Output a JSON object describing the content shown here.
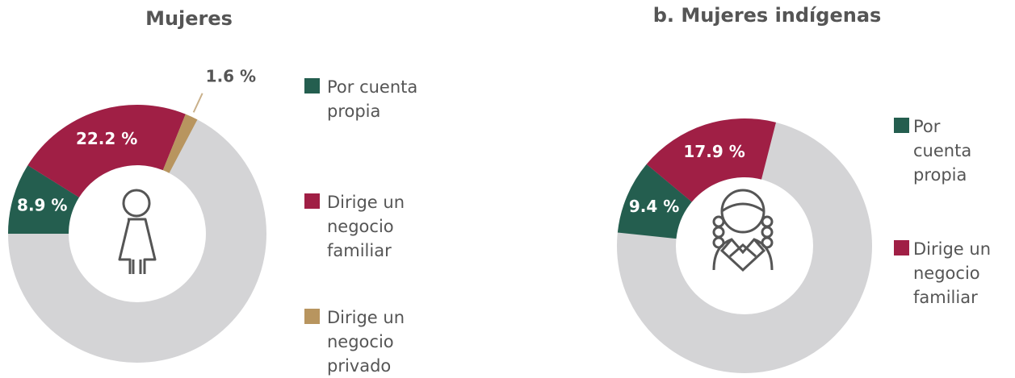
{
  "chart_data": [
    {
      "type": "donut",
      "title": "Mujeres",
      "categories": [
        "Por cuenta propia",
        "Dirige un negocio familiar",
        "Dirige un negocio privado"
      ],
      "values": [
        8.9,
        22.2,
        1.6
      ],
      "value_labels": [
        "8.9 %",
        "22.2 %",
        "1.6 %"
      ],
      "colors": [
        "#245e4f",
        "#a01f45",
        "#b8955f"
      ]
    },
    {
      "type": "donut",
      "title": "b.   Mujeres indígenas",
      "categories": [
        "Por cuenta propia",
        "Dirige un negocio familiar"
      ],
      "values": [
        9.4,
        17.9
      ],
      "value_labels": [
        "9.4 %",
        "17.9 %"
      ],
      "colors": [
        "#245e4f",
        "#a01f45"
      ]
    }
  ]
}
